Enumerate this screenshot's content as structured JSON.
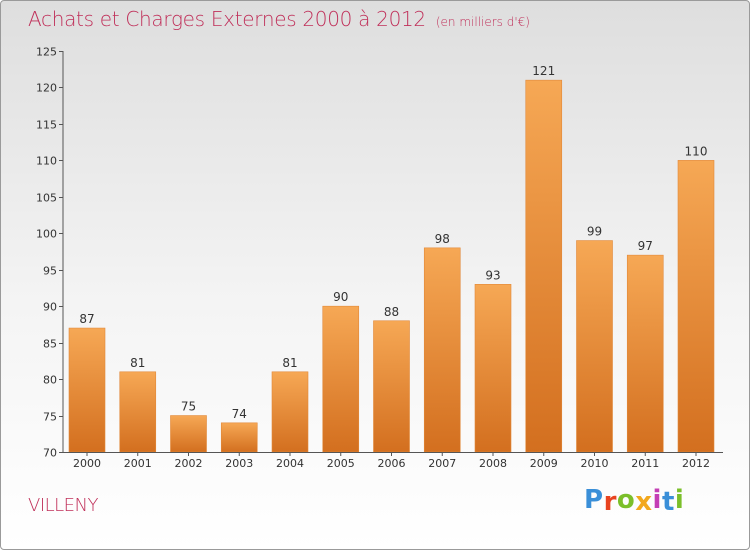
{
  "title": "Achats et Charges Externes 2000 à 2012",
  "unit": "(en milliers d'€)",
  "town": "VILLENY",
  "brand": "Proxiti",
  "brand_colors": [
    "#3a8fd8",
    "#e8431f",
    "#7bbf2a",
    "#f2a81d",
    "#c43fb5",
    "#3a8fd8",
    "#7bbf2a"
  ],
  "bar_color_top": "#f6a855",
  "bar_color_bottom": "#d36f1f",
  "chart_data": {
    "type": "bar",
    "categories": [
      "2000",
      "2001",
      "2002",
      "2003",
      "2004",
      "2005",
      "2006",
      "2007",
      "2008",
      "2009",
      "2010",
      "2011",
      "2012"
    ],
    "values": [
      87,
      81,
      75,
      74,
      81,
      90,
      88,
      98,
      93,
      121,
      99,
      97,
      110
    ],
    "title": "Achats et Charges Externes 2000 à 2012",
    "ylim": [
      70,
      125
    ],
    "yticks": [
      70,
      75,
      80,
      85,
      90,
      95,
      100,
      105,
      110,
      115,
      120,
      125
    ],
    "grid": false,
    "legend": "none"
  }
}
